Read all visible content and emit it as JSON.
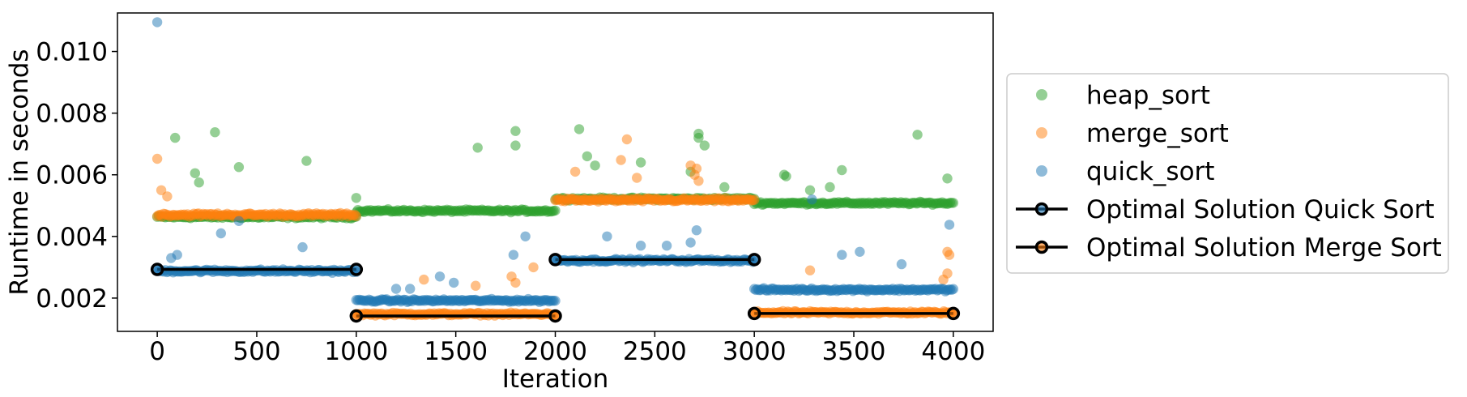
{
  "chart_data": {
    "type": "scatter",
    "title": "",
    "xlabel": "Iteration",
    "ylabel": "Runtime in seconds",
    "xlim": [
      -200,
      4200
    ],
    "ylim": [
      0.00092,
      0.01125
    ],
    "xticks": [
      0,
      500,
      1000,
      1500,
      2000,
      2500,
      3000,
      3500,
      4000
    ],
    "xtick_labels": [
      "0",
      "500",
      "1000",
      "1500",
      "2000",
      "2500",
      "3000",
      "3500",
      "4000"
    ],
    "yticks": [
      0.002,
      0.004,
      0.006,
      0.008,
      0.01
    ],
    "ytick_labels": [
      "0.002",
      "0.004",
      "0.006",
      "0.008",
      "0.010"
    ],
    "grid": false,
    "legend_position": "outside-right",
    "series": [
      {
        "name": "heap_sort",
        "color": "#2ca02c",
        "marker": "circle",
        "segments": [
          {
            "x_start": 0,
            "x_end": 1000,
            "baseline": 0.00463,
            "spread": 6e-05
          },
          {
            "x_start": 1000,
            "x_end": 2000,
            "baseline": 0.00483,
            "spread": 6e-05
          },
          {
            "x_start": 2000,
            "x_end": 3000,
            "baseline": 0.00522,
            "spread": 6e-05
          },
          {
            "x_start": 3000,
            "x_end": 4000,
            "baseline": 0.00508,
            "spread": 6e-05
          }
        ],
        "outliers": [
          {
            "x": 90,
            "y": 0.0072
          },
          {
            "x": 290,
            "y": 0.00738
          },
          {
            "x": 190,
            "y": 0.00605
          },
          {
            "x": 210,
            "y": 0.00575
          },
          {
            "x": 410,
            "y": 0.00625
          },
          {
            "x": 750,
            "y": 0.00645
          },
          {
            "x": 1000,
            "y": 0.00525
          },
          {
            "x": 1610,
            "y": 0.00688
          },
          {
            "x": 1800,
            "y": 0.00742
          },
          {
            "x": 1800,
            "y": 0.00695
          },
          {
            "x": 2120,
            "y": 0.00748
          },
          {
            "x": 2160,
            "y": 0.0066
          },
          {
            "x": 2200,
            "y": 0.0063
          },
          {
            "x": 2430,
            "y": 0.0064
          },
          {
            "x": 2720,
            "y": 0.00733
          },
          {
            "x": 2720,
            "y": 0.0072
          },
          {
            "x": 2750,
            "y": 0.00695
          },
          {
            "x": 2680,
            "y": 0.0061
          },
          {
            "x": 3150,
            "y": 0.006
          },
          {
            "x": 3160,
            "y": 0.00595
          },
          {
            "x": 3440,
            "y": 0.00615
          },
          {
            "x": 3820,
            "y": 0.0073
          },
          {
            "x": 3970,
            "y": 0.00588
          },
          {
            "x": 3380,
            "y": 0.0056
          },
          {
            "x": 2850,
            "y": 0.0056
          },
          {
            "x": 3280,
            "y": 0.0055
          }
        ]
      },
      {
        "name": "merge_sort",
        "color": "#ff7f0e",
        "marker": "circle",
        "segments": [
          {
            "x_start": 0,
            "x_end": 1000,
            "baseline": 0.0047,
            "spread": 8e-05
          },
          {
            "x_start": 1000,
            "x_end": 2000,
            "baseline": 0.00148,
            "spread": 6e-05
          },
          {
            "x_start": 2000,
            "x_end": 3000,
            "baseline": 0.00518,
            "spread": 8e-05
          },
          {
            "x_start": 3000,
            "x_end": 4000,
            "baseline": 0.00153,
            "spread": 6e-05
          }
        ],
        "outliers": [
          {
            "x": 0,
            "y": 0.00652
          },
          {
            "x": 20,
            "y": 0.0055
          },
          {
            "x": 50,
            "y": 0.0053
          },
          {
            "x": 1340,
            "y": 0.0026
          },
          {
            "x": 1600,
            "y": 0.0024
          },
          {
            "x": 1780,
            "y": 0.0027
          },
          {
            "x": 1800,
            "y": 0.0025
          },
          {
            "x": 1890,
            "y": 0.003
          },
          {
            "x": 2100,
            "y": 0.0061
          },
          {
            "x": 2330,
            "y": 0.00648
          },
          {
            "x": 2360,
            "y": 0.00715
          },
          {
            "x": 2410,
            "y": 0.0059
          },
          {
            "x": 2680,
            "y": 0.0063
          },
          {
            "x": 2700,
            "y": 0.006
          },
          {
            "x": 2710,
            "y": 0.0062
          },
          {
            "x": 2720,
            "y": 0.0058
          },
          {
            "x": 3280,
            "y": 0.0029
          },
          {
            "x": 3970,
            "y": 0.0035
          },
          {
            "x": 3980,
            "y": 0.0034
          },
          {
            "x": 3970,
            "y": 0.0028
          },
          {
            "x": 3950,
            "y": 0.0026
          }
        ]
      },
      {
        "name": "quick_sort",
        "color": "#1f77b4",
        "marker": "circle",
        "segments": [
          {
            "x_start": 0,
            "x_end": 1000,
            "baseline": 0.00288,
            "spread": 7e-05
          },
          {
            "x_start": 1000,
            "x_end": 2000,
            "baseline": 0.00192,
            "spread": 6e-05
          },
          {
            "x_start": 2000,
            "x_end": 3000,
            "baseline": 0.00322,
            "spread": 7e-05
          },
          {
            "x_start": 3000,
            "x_end": 4000,
            "baseline": 0.00227,
            "spread": 6e-05
          }
        ],
        "outliers": [
          {
            "x": 0,
            "y": 0.01095
          },
          {
            "x": 70,
            "y": 0.0033
          },
          {
            "x": 100,
            "y": 0.0034
          },
          {
            "x": 320,
            "y": 0.0041
          },
          {
            "x": 730,
            "y": 0.00365
          },
          {
            "x": 410,
            "y": 0.0045
          },
          {
            "x": 1200,
            "y": 0.0023
          },
          {
            "x": 1270,
            "y": 0.0023
          },
          {
            "x": 1420,
            "y": 0.0027
          },
          {
            "x": 1490,
            "y": 0.0025
          },
          {
            "x": 1790,
            "y": 0.0034
          },
          {
            "x": 1850,
            "y": 0.004
          },
          {
            "x": 2260,
            "y": 0.004
          },
          {
            "x": 2430,
            "y": 0.0037
          },
          {
            "x": 2560,
            "y": 0.0037
          },
          {
            "x": 2680,
            "y": 0.0038
          },
          {
            "x": 2710,
            "y": 0.0042
          },
          {
            "x": 3290,
            "y": 0.0052
          },
          {
            "x": 3440,
            "y": 0.0034
          },
          {
            "x": 3530,
            "y": 0.0035
          },
          {
            "x": 3740,
            "y": 0.0031
          },
          {
            "x": 3980,
            "y": 0.00438
          }
        ]
      },
      {
        "name": "Optimal Solution Quick Sort",
        "color": "#000000",
        "marker_face": "#1f77b4",
        "type": "line",
        "segments": [
          {
            "x": [
              0,
              1000
            ],
            "y": [
              0.00293,
              0.00293
            ]
          },
          {
            "x": [
              2000,
              3000
            ],
            "y": [
              0.00325,
              0.00325
            ]
          }
        ]
      },
      {
        "name": "Optimal Solution Merge Sort",
        "color": "#000000",
        "marker_face": "#ff7f0e",
        "type": "line",
        "segments": [
          {
            "x": [
              1000,
              2000
            ],
            "y": [
              0.00142,
              0.00142
            ]
          },
          {
            "x": [
              3000,
              4000
            ],
            "y": [
              0.0015,
              0.0015
            ]
          }
        ]
      }
    ]
  }
}
